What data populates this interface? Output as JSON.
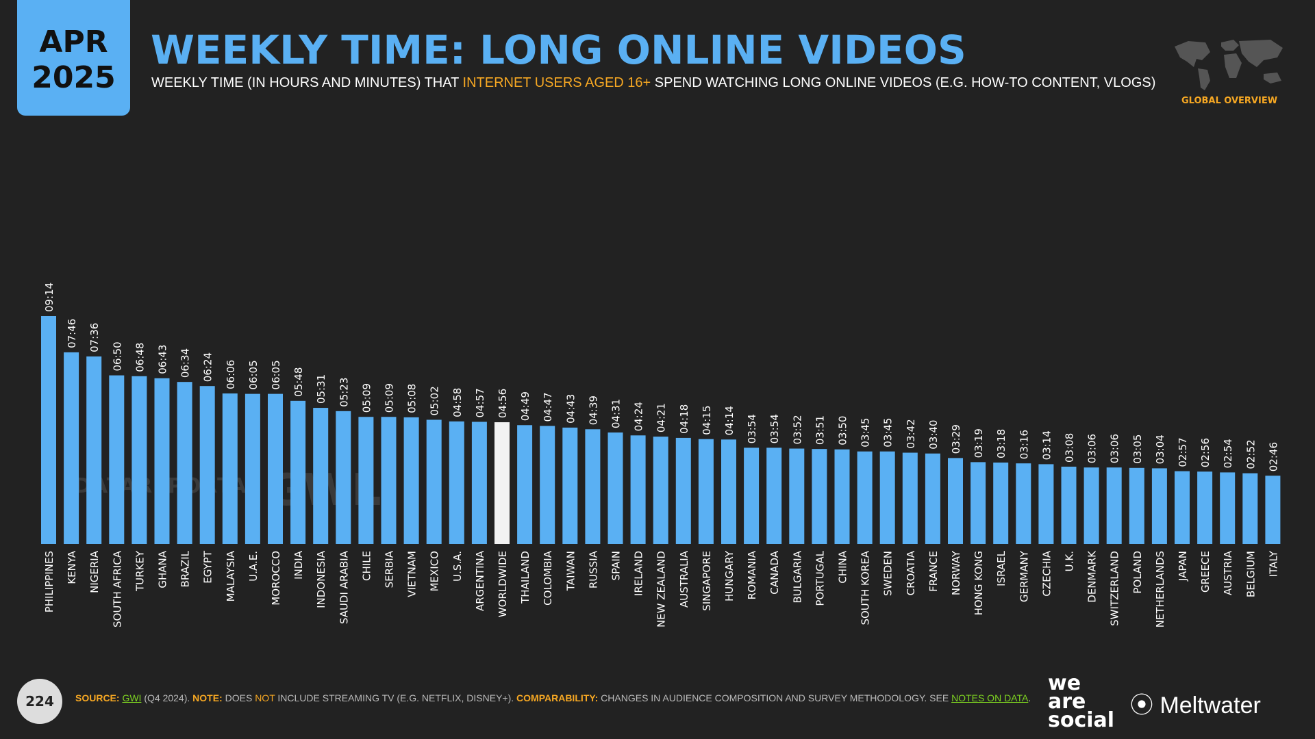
{
  "header": {
    "month": "APR",
    "year": "2025",
    "title": "WEEKLY TIME: LONG ONLINE VIDEOS",
    "subtitle_pre": "WEEKLY TIME (IN HOURS AND MINUTES) THAT ",
    "subtitle_highlight": "INTERNET USERS AGED 16+",
    "subtitle_post": " SPEND WATCHING LONG ONLINE VIDEOS (E.G. HOW-TO CONTENT, VLOGS)",
    "region_label": "GLOBAL OVERVIEW"
  },
  "watermarks": {
    "datareportal": "DATAREPORTAL",
    "gwi": "GWI."
  },
  "footer": {
    "page_number": "224",
    "source_label": "SOURCE:",
    "source_name": "GWI",
    "source_detail": " (Q4 2024). ",
    "note_label": "NOTE:",
    "note_pre": " DOES ",
    "note_not": "NOT",
    "note_post": " INCLUDE STREAMING TV (E.G. NETFLIX, DISNEY+). ",
    "comparability_label": "COMPARABILITY:",
    "comparability_text": " CHANGES IN AUDIENCE COMPOSITION AND SURVEY METHODOLOGY. SEE ",
    "notes_link": "NOTES ON DATA",
    "end": ".",
    "brand1_line1": "we",
    "brand1_line2": "are",
    "brand1_line3": "social",
    "brand2": "Meltwater"
  },
  "colors": {
    "bar": "#5AB0F3",
    "highlight_bar": "#F2F2F2",
    "accent": "#F7A823",
    "background": "#222222"
  },
  "chart_data": {
    "type": "bar",
    "title": "",
    "xlabel": "",
    "ylabel": "",
    "value_unit": "hours:minutes",
    "highlight_category": "WORLDWIDE",
    "categories": [
      "PHILIPPINES",
      "KENYA",
      "NIGERIA",
      "SOUTH AFRICA",
      "TURKEY",
      "GHANA",
      "BRAZIL",
      "EGYPT",
      "MALAYSIA",
      "U.A.E.",
      "MOROCCO",
      "INDIA",
      "INDONESIA",
      "SAUDI ARABIA",
      "CHILE",
      "SERBIA",
      "VIETNAM",
      "MEXICO",
      "U.S.A.",
      "ARGENTINA",
      "WORLDWIDE",
      "THAILAND",
      "COLOMBIA",
      "TAIWAN",
      "RUSSIA",
      "SPAIN",
      "IRELAND",
      "NEW ZEALAND",
      "AUSTRALIA",
      "SINGAPORE",
      "HUNGARY",
      "ROMANIA",
      "CANADA",
      "BULGARIA",
      "PORTUGAL",
      "CHINA",
      "SOUTH KOREA",
      "SWEDEN",
      "CROATIA",
      "FRANCE",
      "NORWAY",
      "HONG KONG",
      "ISRAEL",
      "GERMANY",
      "CZECHIA",
      "U.K.",
      "DENMARK",
      "SWITZERLAND",
      "POLAND",
      "NETHERLANDS",
      "JAPAN",
      "GREECE",
      "AUSTRIA",
      "BELGIUM",
      "ITALY"
    ],
    "labels": [
      "09:14",
      "07:46",
      "07:36",
      "06:50",
      "06:48",
      "06:43",
      "06:34",
      "06:24",
      "06:06",
      "06:05",
      "06:05",
      "05:48",
      "05:31",
      "05:23",
      "05:09",
      "05:09",
      "05:08",
      "05:02",
      "04:58",
      "04:57",
      "04:56",
      "04:49",
      "04:47",
      "04:43",
      "04:39",
      "04:31",
      "04:24",
      "04:21",
      "04:18",
      "04:15",
      "04:14",
      "03:54",
      "03:54",
      "03:52",
      "03:51",
      "03:50",
      "03:45",
      "03:45",
      "03:42",
      "03:40",
      "03:29",
      "03:19",
      "03:18",
      "03:16",
      "03:14",
      "03:08",
      "03:06",
      "03:06",
      "03:05",
      "03:04",
      "02:57",
      "02:56",
      "02:54",
      "02:52",
      "02:46"
    ],
    "values": [
      554,
      466,
      456,
      410,
      408,
      403,
      394,
      384,
      366,
      365,
      365,
      348,
      331,
      323,
      309,
      309,
      308,
      302,
      298,
      297,
      296,
      289,
      287,
      283,
      279,
      271,
      264,
      261,
      258,
      255,
      254,
      234,
      234,
      232,
      231,
      230,
      225,
      225,
      222,
      220,
      209,
      199,
      198,
      196,
      194,
      188,
      186,
      186,
      185,
      184,
      177,
      176,
      174,
      172,
      166
    ],
    "ylim": [
      0,
      554
    ]
  }
}
